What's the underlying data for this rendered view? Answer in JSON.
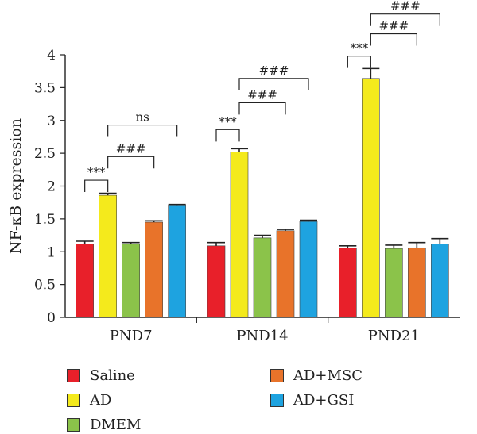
{
  "chart_data": {
    "type": "bar",
    "ylabel": "NF-κB expression",
    "xlabel": "",
    "ylim": [
      0,
      4
    ],
    "yticks": [
      "0",
      "0.5",
      "1",
      "1.5",
      "2",
      "2.5",
      "3",
      "3.5",
      "4"
    ],
    "ytick_values": [
      0,
      0.5,
      1,
      1.5,
      2,
      2.5,
      3,
      3.5,
      4
    ],
    "categories": [
      "PND7",
      "PND14",
      "PND21"
    ],
    "series": [
      {
        "name": "Saline",
        "color": "#e8202a",
        "values": [
          1.12,
          1.09,
          1.06
        ],
        "errors": [
          0.04,
          0.05,
          0.03
        ]
      },
      {
        "name": "AD",
        "color": "#f4ea1c",
        "values": [
          1.86,
          2.52,
          3.64
        ],
        "errors": [
          0.03,
          0.05,
          0.15
        ]
      },
      {
        "name": "DMEM",
        "color": "#8bc34a",
        "values": [
          1.12,
          1.21,
          1.05
        ],
        "errors": [
          0.02,
          0.04,
          0.05
        ]
      },
      {
        "name": "AD+MSC",
        "color": "#e8732a",
        "values": [
          1.45,
          1.32,
          1.06
        ],
        "errors": [
          0.02,
          0.02,
          0.08
        ]
      },
      {
        "name": "AD+GSI",
        "color": "#1ea3e0",
        "values": [
          1.7,
          1.46,
          1.12
        ],
        "errors": [
          0.02,
          0.02,
          0.08
        ]
      }
    ],
    "annotations": [
      {
        "group": 0,
        "from": 0,
        "to": 1,
        "label": "***",
        "level": 2.09
      },
      {
        "group": 0,
        "from": 1,
        "to": 3,
        "label": "###",
        "level": 2.45
      },
      {
        "group": 0,
        "from": 1,
        "to": 4,
        "label": "ns",
        "level": 2.93
      },
      {
        "group": 1,
        "from": 0,
        "to": 1,
        "label": "***",
        "level": 2.86
      },
      {
        "group": 1,
        "from": 1,
        "to": 3,
        "label": "###",
        "level": 3.27
      },
      {
        "group": 1,
        "from": 1,
        "to": 4,
        "label": "###",
        "level": 3.64
      },
      {
        "group": 2,
        "from": 0,
        "to": 1,
        "label": "***",
        "level": 3.98
      },
      {
        "group": 2,
        "from": 1,
        "to": 3,
        "label": "###",
        "level": 4.32
      },
      {
        "group": 2,
        "from": 1,
        "to": 4,
        "label": "###",
        "level": 4.62
      }
    ],
    "legend_placement": "bottom",
    "grid": false
  }
}
